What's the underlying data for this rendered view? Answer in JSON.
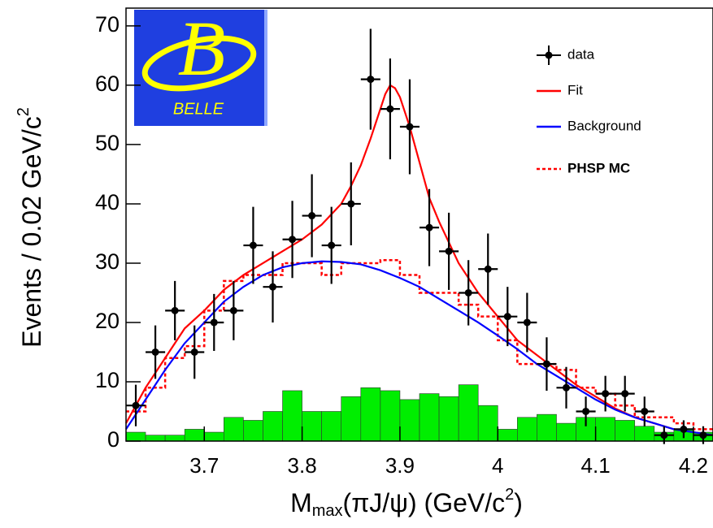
{
  "chart_data": {
    "type": "histogram-fit",
    "xlabel": {
      "main": "M",
      "sub": "max",
      "rest": "(πJ/ψ) (GeV/c",
      "sup": "2",
      "end": ")"
    },
    "ylabel": {
      "main": "Events / 0.02 GeV/c",
      "sup": "2"
    },
    "logo": {
      "letter": "B",
      "text": "BELLE"
    },
    "xlim": [
      3.62,
      4.22
    ],
    "ylim": [
      0,
      73
    ],
    "xticks": [
      3.7,
      3.8,
      3.9,
      4,
      4.1,
      4.2
    ],
    "yticks": [
      0,
      10,
      20,
      30,
      40,
      50,
      60,
      70
    ],
    "bins": [
      3.62,
      3.64,
      3.66,
      3.68,
      3.7,
      3.72,
      3.74,
      3.76,
      3.78,
      3.8,
      3.82,
      3.84,
      3.86,
      3.88,
      3.9,
      3.92,
      3.94,
      3.96,
      3.98,
      4.0,
      4.02,
      4.04,
      4.06,
      4.08,
      4.1,
      4.12,
      4.14,
      4.16,
      4.18,
      4.2,
      4.22
    ],
    "x": [
      3.63,
      3.65,
      3.67,
      3.69,
      3.71,
      3.73,
      3.75,
      3.77,
      3.79,
      3.81,
      3.83,
      3.85,
      3.87,
      3.89,
      3.91,
      3.93,
      3.95,
      3.97,
      3.99,
      4.01,
      4.03,
      4.05,
      4.07,
      4.09,
      4.11,
      4.13,
      4.15,
      4.17,
      4.19,
      4.21
    ],
    "series": [
      {
        "name": "data",
        "color": "#000000",
        "kind": "points",
        "values": [
          6,
          15,
          22,
          15,
          20,
          22,
          33,
          26,
          34,
          38,
          33,
          40,
          61,
          56,
          53,
          36,
          32,
          25,
          29,
          21,
          20,
          13,
          9,
          5,
          8,
          8,
          5,
          1,
          2,
          1
        ],
        "errors": [
          3.5,
          4.5,
          5,
          4.5,
          4.8,
          5,
          6.5,
          6,
          6.5,
          7,
          6.5,
          7,
          8.5,
          8.5,
          8,
          6.5,
          6.5,
          5.5,
          6,
          5,
          5,
          4.5,
          3.5,
          2.5,
          3,
          3,
          2.5,
          1.5,
          1.5,
          1.5
        ]
      },
      {
        "name": "Fit",
        "color": "#ff0000",
        "kind": "curve",
        "x": [
          3.62,
          3.64,
          3.66,
          3.68,
          3.7,
          3.72,
          3.74,
          3.76,
          3.78,
          3.8,
          3.82,
          3.84,
          3.85,
          3.86,
          3.87,
          3.88,
          3.885,
          3.89,
          3.895,
          3.9,
          3.91,
          3.92,
          3.93,
          3.94,
          3.96,
          3.98,
          4.0,
          4.02,
          4.04,
          4.06,
          4.08,
          4.1,
          4.12,
          4.14,
          4.16,
          4.18,
          4.2,
          4.22
        ],
        "values": [
          3,
          9,
          14,
          19,
          22,
          25.5,
          28,
          30,
          32,
          34,
          36.5,
          40,
          43,
          46.5,
          51,
          56,
          58.5,
          60,
          59.5,
          58,
          53,
          47,
          41,
          37,
          30,
          25,
          21,
          17,
          14.5,
          12,
          9.5,
          7.5,
          5.5,
          4,
          3,
          2,
          1.5,
          1
        ]
      },
      {
        "name": "Background",
        "color": "#0000ff",
        "kind": "curve",
        "x": [
          3.62,
          3.64,
          3.66,
          3.68,
          3.7,
          3.72,
          3.74,
          3.76,
          3.78,
          3.8,
          3.82,
          3.84,
          3.86,
          3.88,
          3.9,
          3.92,
          3.94,
          3.96,
          3.98,
          4.0,
          4.02,
          4.04,
          4.06,
          4.08,
          4.1,
          4.12,
          4.14,
          4.16,
          4.18,
          4.2,
          4.22
        ],
        "values": [
          2,
          7,
          12,
          16.5,
          20,
          23.5,
          26,
          28,
          29.3,
          30,
          30.3,
          30.2,
          29.8,
          28.8,
          27.5,
          26,
          24,
          22,
          20,
          17.8,
          15.5,
          13,
          11,
          9,
          7,
          5.3,
          4,
          3,
          2,
          1.5,
          1
        ]
      },
      {
        "name": "PHSP MC",
        "color": "#ff0000",
        "kind": "step",
        "values": [
          5,
          9,
          14,
          16,
          22,
          27,
          28,
          28,
          30,
          30,
          28,
          30,
          30,
          30.5,
          28,
          25,
          25,
          23,
          21,
          17,
          13,
          13,
          12,
          9,
          8,
          6,
          4,
          4,
          3,
          2
        ]
      },
      {
        "color": "#00ee00",
        "kind": "filled",
        "values": [
          1.5,
          1,
          1,
          2,
          1.5,
          4,
          3.5,
          5,
          8.5,
          5,
          5,
          7.5,
          9,
          8.5,
          7,
          8,
          7.5,
          9.5,
          6,
          2,
          4,
          4.5,
          3,
          4,
          4,
          3.5,
          2.5,
          1.5,
          2,
          1.5
        ]
      }
    ]
  }
}
